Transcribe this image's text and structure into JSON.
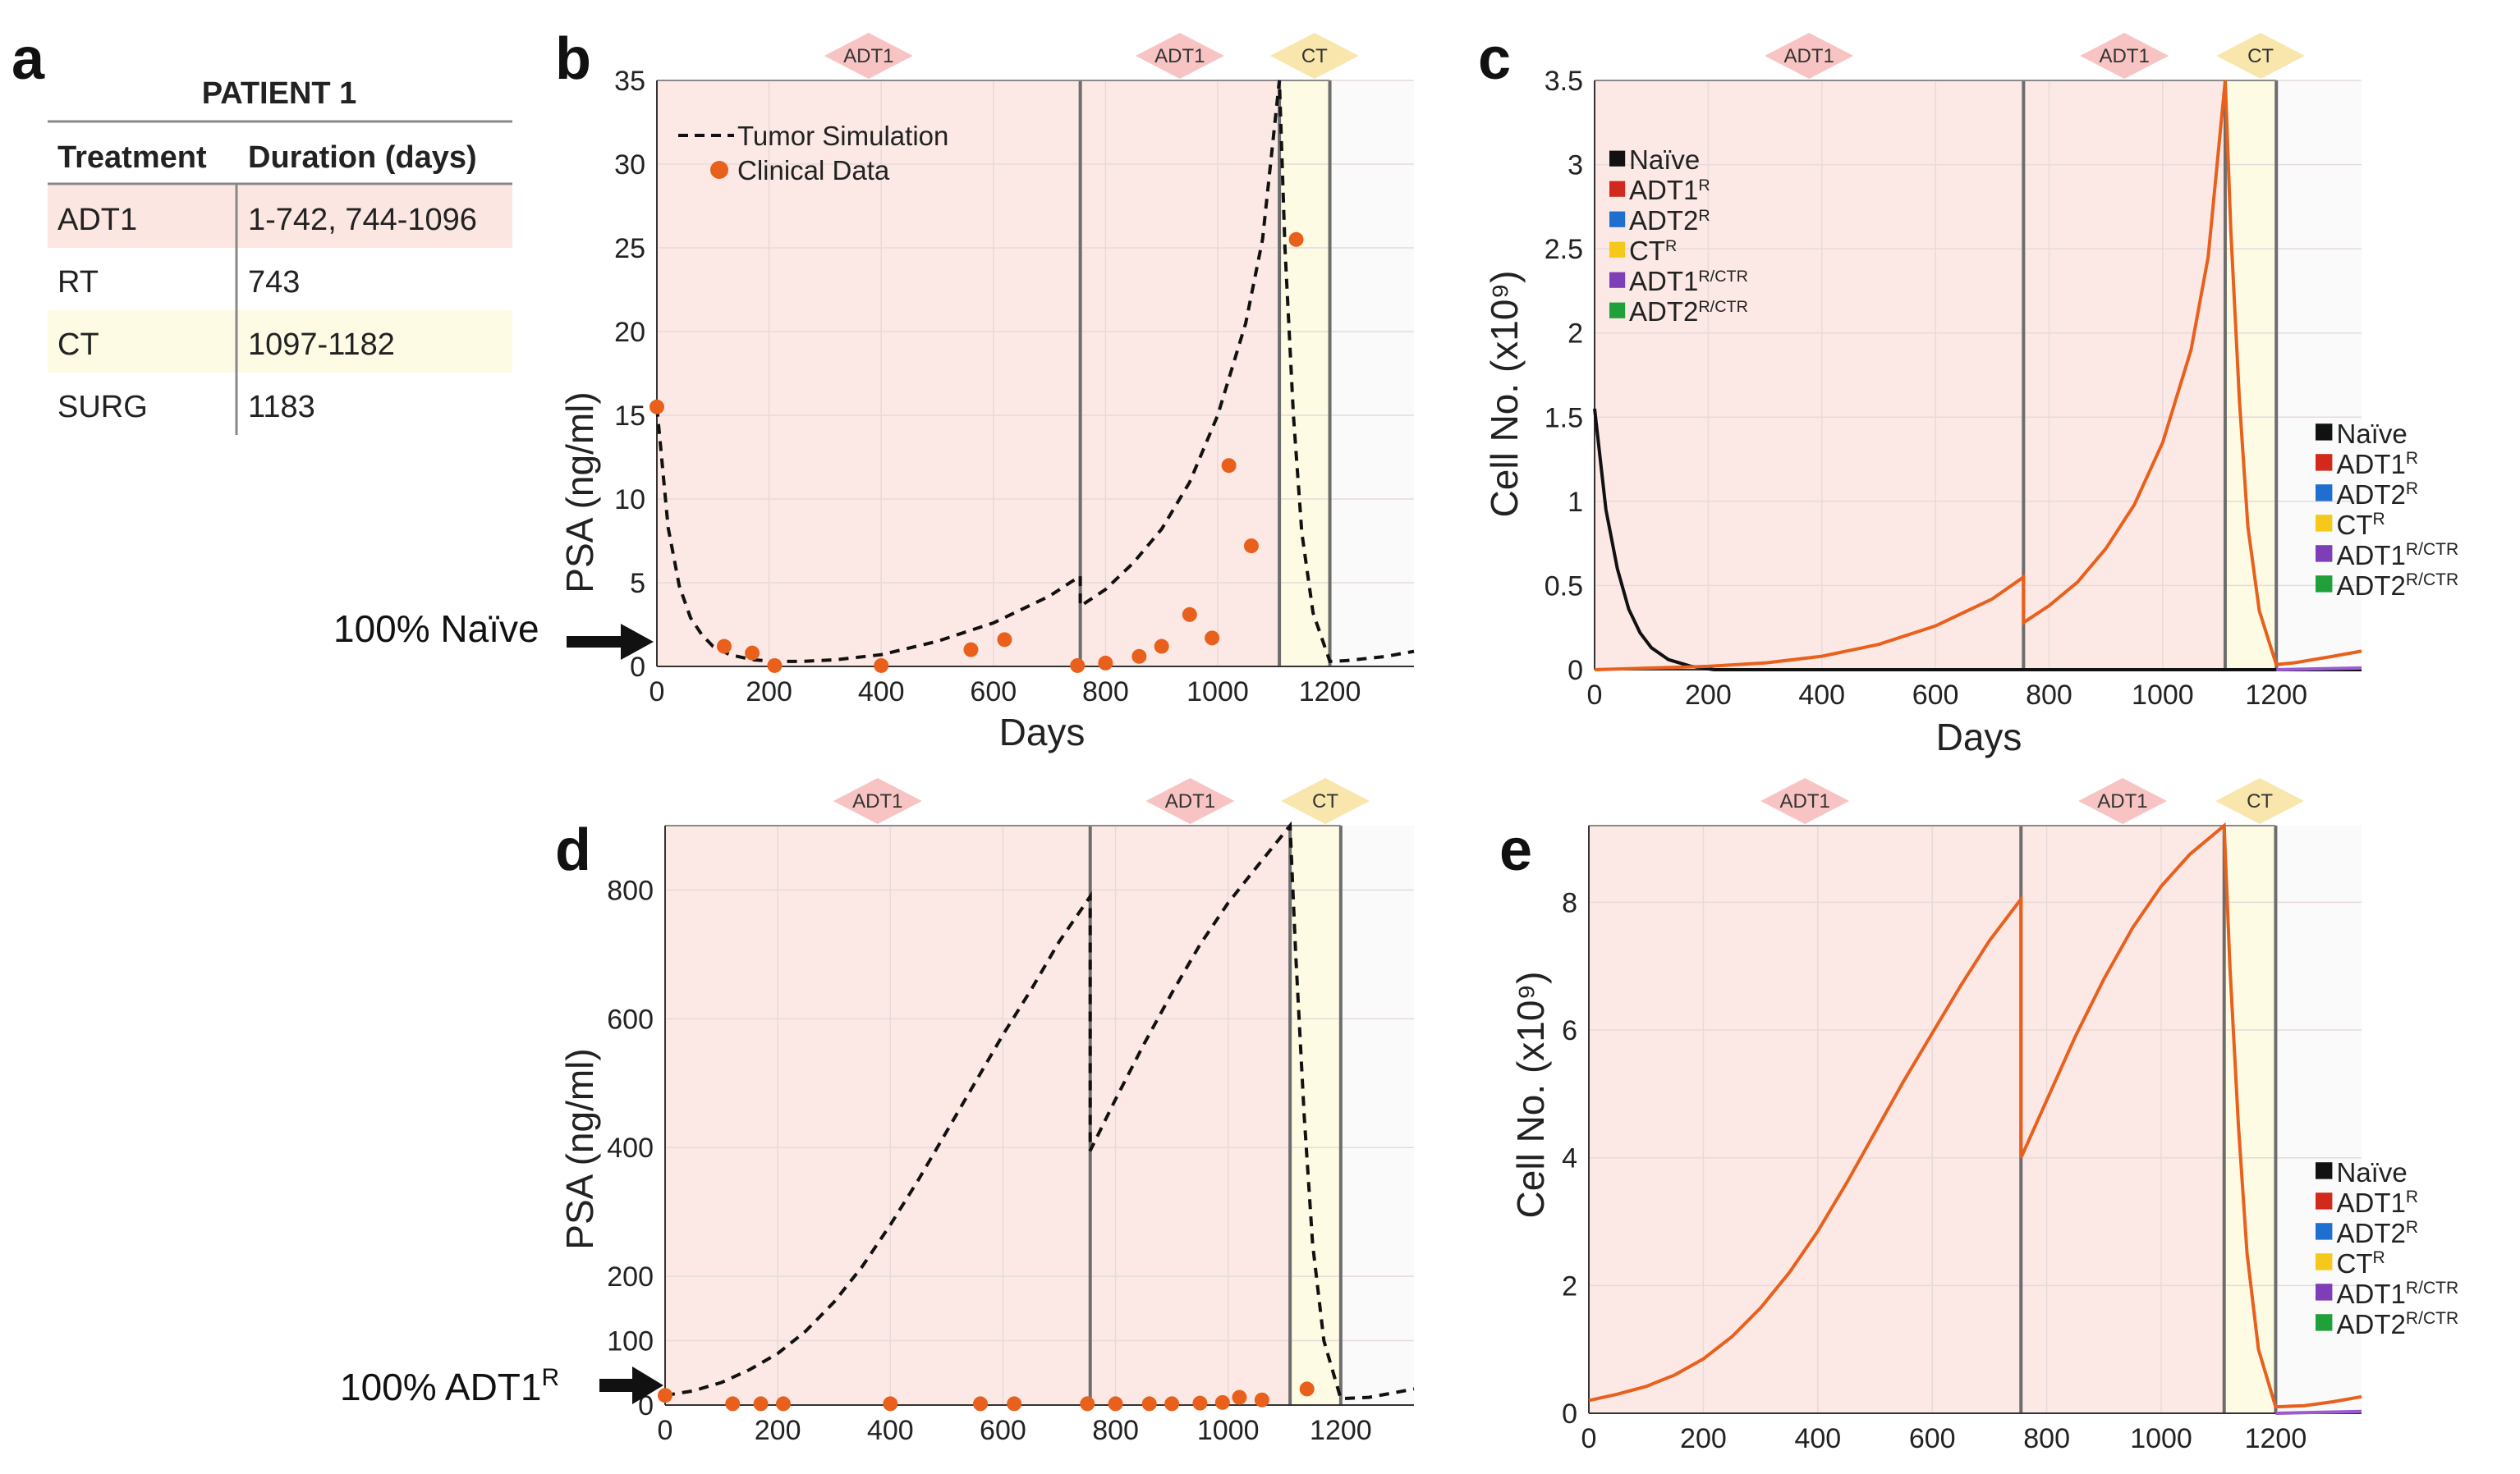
{
  "panel_a": {
    "label": "a",
    "title": "PATIENT 1",
    "headers": [
      "Treatment",
      "Duration (days)"
    ],
    "rows": [
      {
        "treatment": "ADT1",
        "duration": "1-742, 744-1096",
        "color": "#fbe6e1"
      },
      {
        "treatment": "RT",
        "duration": "743",
        "color": "#ffffff"
      },
      {
        "treatment": "CT",
        "duration": "1097-1182",
        "color": "#fdfbe4"
      },
      {
        "treatment": "SURG",
        "duration": "1183",
        "color": "#ffffff"
      }
    ]
  },
  "colors": {
    "adt1_shade": "#fce9e5",
    "ct_shade": "#fdfbe3",
    "adt1_diamond": "#f7c4c3",
    "ct_diamond": "#f8e6ad",
    "orange": "#e8601c",
    "black": "#000000"
  },
  "legend_ps": {
    "sim": "Tumor Simulation",
    "clin": "Clinical Data"
  },
  "legend_cells": [
    {
      "name": "Naïve",
      "sup": "",
      "color": "#111111"
    },
    {
      "name": "ADT1",
      "sup": "R",
      "color": "#d12a1c"
    },
    {
      "name": "ADT2",
      "sup": "R",
      "color": "#1f6fd1"
    },
    {
      "name": "CT",
      "sup": "R",
      "color": "#f5c81b"
    },
    {
      "name": "ADT1",
      "sup": "R/CTR",
      "color": "#7e3eb5"
    },
    {
      "name": "ADT2",
      "sup": "R/CTR",
      "color": "#1fa03a"
    }
  ],
  "chart_data": [
    {
      "id": "b",
      "label": "b",
      "type": "line",
      "xlabel": "Days",
      "ylabel": "PSA (ng/ml)",
      "xlim": [
        0,
        1350
      ],
      "ylim": [
        0,
        35
      ],
      "xticks": [
        0,
        200,
        400,
        600,
        800,
        1000,
        1200
      ],
      "yticks": [
        0,
        5,
        10,
        15,
        20,
        25,
        30,
        35
      ],
      "regions": [
        {
          "start": 0,
          "end": 755,
          "label": "ADT1",
          "kind": "adt"
        },
        {
          "start": 755,
          "end": 1110,
          "label": "ADT1",
          "kind": "adt"
        },
        {
          "start": 1110,
          "end": 1200,
          "label": "CT",
          "kind": "ct"
        }
      ],
      "annotation": {
        "text": "100% Naïve",
        "sup": "",
        "x": 70,
        "y": 2.5
      },
      "series": [
        {
          "name": "Tumor Simulation",
          "style": "dashed",
          "points": [
            [
              0,
              15.5
            ],
            [
              20,
              8.3
            ],
            [
              40,
              4.8
            ],
            [
              60,
              2.9
            ],
            [
              80,
              1.9
            ],
            [
              100,
              1.2
            ],
            [
              130,
              0.7
            ],
            [
              170,
              0.4
            ],
            [
              210,
              0.3
            ],
            [
              260,
              0.3
            ],
            [
              320,
              0.4
            ],
            [
              400,
              0.7
            ],
            [
              500,
              1.5
            ],
            [
              600,
              2.6
            ],
            [
              700,
              4.2
            ],
            [
              755,
              5.4
            ],
            [
              755,
              3.6
            ],
            [
              800,
              4.6
            ],
            [
              850,
              6.2
            ],
            [
              900,
              8.2
            ],
            [
              950,
              11.0
            ],
            [
              1000,
              15.0
            ],
            [
              1050,
              20.5
            ],
            [
              1080,
              25.5
            ],
            [
              1110,
              35.0
            ],
            [
              1120,
              25.0
            ],
            [
              1135,
              15.0
            ],
            [
              1150,
              8.0
            ],
            [
              1170,
              3.2
            ],
            [
              1200,
              0.3
            ],
            [
              1230,
              0.35
            ],
            [
              1300,
              0.6
            ],
            [
              1350,
              0.9
            ]
          ]
        },
        {
          "name": "Clinical Data",
          "style": "points",
          "points": [
            [
              0,
              15.5
            ],
            [
              120,
              1.2
            ],
            [
              170,
              0.8
            ],
            [
              210,
              0.05
            ],
            [
              400,
              0.05
            ],
            [
              560,
              1.0
            ],
            [
              620,
              1.6
            ],
            [
              750,
              0.05
            ],
            [
              800,
              0.2
            ],
            [
              860,
              0.6
            ],
            [
              900,
              1.2
            ],
            [
              950,
              3.1
            ],
            [
              990,
              1.7
            ],
            [
              1020,
              12.0
            ],
            [
              1060,
              7.2
            ],
            [
              1140,
              25.5
            ]
          ]
        }
      ]
    },
    {
      "id": "c",
      "label": "c",
      "type": "line",
      "xlabel": "Days",
      "ylabel": "Cell No. (x10⁹)",
      "xlim": [
        0,
        1350
      ],
      "ylim": [
        0,
        3.5
      ],
      "xticks": [
        0,
        200,
        400,
        600,
        800,
        1000,
        1200
      ],
      "yticks": [
        0,
        0.5,
        1,
        1.5,
        2,
        2.5,
        3,
        3.5
      ],
      "regions": [
        {
          "start": 0,
          "end": 755,
          "label": "ADT1",
          "kind": "adt"
        },
        {
          "start": 755,
          "end": 1110,
          "label": "ADT1",
          "kind": "adt"
        },
        {
          "start": 1110,
          "end": 1200,
          "label": "CT",
          "kind": "ct"
        }
      ],
      "series": [
        {
          "name": "Naïve",
          "color": "#111111",
          "points": [
            [
              0,
              1.55
            ],
            [
              20,
              0.95
            ],
            [
              40,
              0.6
            ],
            [
              60,
              0.36
            ],
            [
              80,
              0.22
            ],
            [
              100,
              0.13
            ],
            [
              130,
              0.06
            ],
            [
              170,
              0.02
            ],
            [
              210,
              0.0
            ],
            [
              1350,
              0.0
            ]
          ]
        },
        {
          "name": "ADT1R",
          "color": "#e8601c",
          "points": [
            [
              0,
              0.0
            ],
            [
              200,
              0.02
            ],
            [
              300,
              0.04
            ],
            [
              400,
              0.08
            ],
            [
              500,
              0.15
            ],
            [
              600,
              0.26
            ],
            [
              700,
              0.42
            ],
            [
              755,
              0.55
            ],
            [
              755,
              0.28
            ],
            [
              800,
              0.38
            ],
            [
              850,
              0.52
            ],
            [
              900,
              0.72
            ],
            [
              950,
              0.98
            ],
            [
              1000,
              1.35
            ],
            [
              1050,
              1.9
            ],
            [
              1080,
              2.45
            ],
            [
              1110,
              3.5
            ],
            [
              1120,
              2.6
            ],
            [
              1135,
              1.6
            ],
            [
              1150,
              0.85
            ],
            [
              1170,
              0.35
            ],
            [
              1200,
              0.03
            ],
            [
              1230,
              0.04
            ],
            [
              1300,
              0.08
            ],
            [
              1350,
              0.11
            ]
          ]
        },
        {
          "name": "ADT1R/CTR",
          "color": "#9a5bd1",
          "points": [
            [
              1200,
              0.0
            ],
            [
              1350,
              0.01
            ]
          ]
        }
      ]
    },
    {
      "id": "d",
      "label": "d",
      "type": "line",
      "xlabel": "",
      "ylabel": "PSA (ng/ml)",
      "xlim": [
        0,
        1330
      ],
      "ylim": [
        0,
        900
      ],
      "xticks": [
        0,
        200,
        400,
        600,
        800,
        1000,
        1200
      ],
      "yticks": [
        0,
        100,
        200,
        400,
        600,
        800
      ],
      "regions": [
        {
          "start": 0,
          "end": 755,
          "label": "ADT1",
          "kind": "adt"
        },
        {
          "start": 755,
          "end": 1110,
          "label": "ADT1",
          "kind": "adt"
        },
        {
          "start": 1110,
          "end": 1200,
          "label": "CT",
          "kind": "ct"
        }
      ],
      "annotation": {
        "text": "100% ADT1",
        "sup": "R",
        "x": 0,
        "y": 20
      },
      "series": [
        {
          "name": "Tumor Simulation",
          "style": "dashed",
          "points": [
            [
              0,
              15
            ],
            [
              50,
              22
            ],
            [
              100,
              35
            ],
            [
              150,
              55
            ],
            [
              200,
              80
            ],
            [
              250,
              115
            ],
            [
              300,
              160
            ],
            [
              350,
              215
            ],
            [
              400,
              280
            ],
            [
              450,
              350
            ],
            [
              500,
              425
            ],
            [
              550,
              500
            ],
            [
              600,
              575
            ],
            [
              650,
              645
            ],
            [
              700,
              720
            ],
            [
              755,
              790
            ],
            [
              755,
              395
            ],
            [
              800,
              475
            ],
            [
              850,
              560
            ],
            [
              900,
              640
            ],
            [
              950,
              715
            ],
            [
              1000,
              780
            ],
            [
              1050,
              835
            ],
            [
              1110,
              900
            ],
            [
              1120,
              700
            ],
            [
              1135,
              450
            ],
            [
              1150,
              250
            ],
            [
              1170,
              100
            ],
            [
              1200,
              10
            ],
            [
              1250,
              12
            ],
            [
              1300,
              20
            ],
            [
              1330,
              25
            ]
          ]
        },
        {
          "name": "Clinical Data",
          "style": "points",
          "points": [
            [
              0,
              15
            ],
            [
              120,
              2
            ],
            [
              170,
              2
            ],
            [
              210,
              2
            ],
            [
              400,
              2
            ],
            [
              560,
              2
            ],
            [
              620,
              2
            ],
            [
              750,
              2
            ],
            [
              800,
              2
            ],
            [
              860,
              2
            ],
            [
              900,
              2
            ],
            [
              950,
              3
            ],
            [
              990,
              4
            ],
            [
              1020,
              12
            ],
            [
              1060,
              8
            ],
            [
              1140,
              25
            ]
          ]
        }
      ]
    },
    {
      "id": "e",
      "label": "e",
      "type": "line",
      "xlabel": "",
      "ylabel": "Cell No. (x10⁹)",
      "xlim": [
        0,
        1350
      ],
      "ylim": [
        0,
        9.2
      ],
      "xticks": [
        0,
        200,
        400,
        600,
        800,
        1000,
        1200
      ],
      "yticks": [
        0,
        2,
        4,
        6,
        8
      ],
      "regions": [
        {
          "start": 0,
          "end": 755,
          "label": "ADT1",
          "kind": "adt"
        },
        {
          "start": 755,
          "end": 1110,
          "label": "ADT1",
          "kind": "adt"
        },
        {
          "start": 1110,
          "end": 1200,
          "label": "CT",
          "kind": "ct"
        }
      ],
      "series": [
        {
          "name": "ADT1R",
          "color": "#e8601c",
          "points": [
            [
              0,
              0.2
            ],
            [
              50,
              0.3
            ],
            [
              100,
              0.42
            ],
            [
              150,
              0.6
            ],
            [
              200,
              0.85
            ],
            [
              250,
              1.2
            ],
            [
              300,
              1.65
            ],
            [
              350,
              2.2
            ],
            [
              400,
              2.85
            ],
            [
              450,
              3.6
            ],
            [
              500,
              4.4
            ],
            [
              550,
              5.2
            ],
            [
              600,
              5.95
            ],
            [
              650,
              6.7
            ],
            [
              700,
              7.4
            ],
            [
              755,
              8.05
            ],
            [
              755,
              4.0
            ],
            [
              800,
              4.9
            ],
            [
              850,
              5.9
            ],
            [
              900,
              6.8
            ],
            [
              950,
              7.6
            ],
            [
              1000,
              8.25
            ],
            [
              1050,
              8.75
            ],
            [
              1110,
              9.2
            ],
            [
              1120,
              7.0
            ],
            [
              1135,
              4.5
            ],
            [
              1150,
              2.5
            ],
            [
              1170,
              1.0
            ],
            [
              1200,
              0.1
            ],
            [
              1250,
              0.12
            ],
            [
              1300,
              0.18
            ],
            [
              1350,
              0.26
            ]
          ]
        },
        {
          "name": "ADT1R/CTR",
          "color": "#9a5bd1",
          "points": [
            [
              1200,
              0.0
            ],
            [
              1350,
              0.03
            ]
          ]
        }
      ]
    }
  ]
}
